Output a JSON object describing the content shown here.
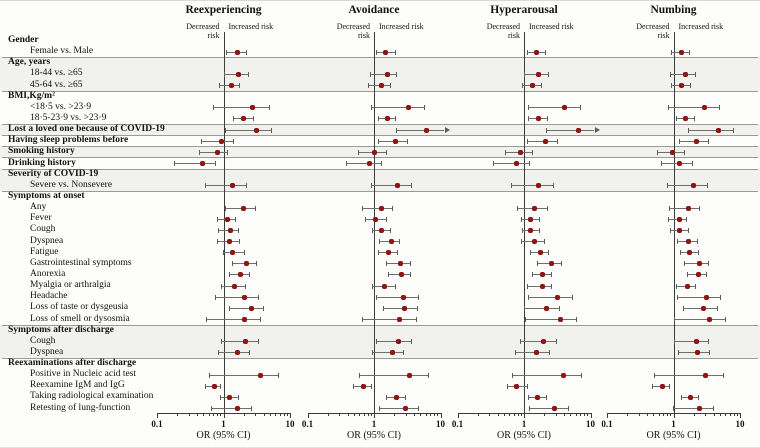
{
  "chart_data": {
    "type": "forest",
    "title": "",
    "xlabel": "OR (95% CI)",
    "xlim": [
      0.1,
      10
    ],
    "x_major_ticks": [
      "0.1",
      "1",
      "10"
    ],
    "grid": false,
    "risk_left_label": "Decreased risk",
    "risk_right_label": "Increased risk",
    "colors": {
      "marker": "#8e1510",
      "ci": "#6e6e6e",
      "band": "#f1f1ed",
      "divider": "#9a9a96"
    },
    "rows": [
      {
        "label": "Gender",
        "header": true
      },
      {
        "label": "Female vs. Male"
      },
      {
        "label": "Age, years",
        "header": true,
        "divider": true,
        "shaded": true
      },
      {
        "label": "18-44 vs. ≥65",
        "shaded": true
      },
      {
        "label": "45-64 vs. ≥65",
        "shaded": true
      },
      {
        "label": "BMI,Kg/m²",
        "header": true,
        "divider": true
      },
      {
        "label": "<18·5  vs. >23·9"
      },
      {
        "label": "18·5-23·9  vs. >23·9"
      },
      {
        "label": "Lost a loved one because of COVID-19",
        "header": true,
        "divider": true,
        "shaded": true
      },
      {
        "label": "Having sleep problems before",
        "header": true,
        "divider": true
      },
      {
        "label": "Smoking history",
        "header": true,
        "divider": true,
        "shaded": true
      },
      {
        "label": "Drinking history",
        "header": true,
        "divider": true
      },
      {
        "label": "Severity of COVID-19",
        "header": true,
        "divider": true,
        "shaded": true
      },
      {
        "label": "Severe vs. Nonsevere",
        "shaded": true
      },
      {
        "label": "Symptoms at onset",
        "header": true,
        "divider": true
      },
      {
        "label": "Any"
      },
      {
        "label": "Fever"
      },
      {
        "label": "Cough"
      },
      {
        "label": "Dyspnea"
      },
      {
        "label": "Fatigue"
      },
      {
        "label": "Gastrointestinal symptoms"
      },
      {
        "label": "Anorexia"
      },
      {
        "label": "Myalgia or arthralgia"
      },
      {
        "label": "Headache"
      },
      {
        "label": "Loss of taste or dysgeusia"
      },
      {
        "label": "Loss of smell or dysosmia"
      },
      {
        "label": "Symptoms after discharge",
        "header": true,
        "divider": true,
        "shaded": true
      },
      {
        "label": "Cough",
        "shaded": true
      },
      {
        "label": "Dyspnea",
        "shaded": true
      },
      {
        "label": "Reexaminations after discharge",
        "header": true,
        "divider": true
      },
      {
        "label": "Positive in Nucleic acid test"
      },
      {
        "label": "Reexamine IgM and IgG"
      },
      {
        "label": "Taking radiological examination"
      },
      {
        "label": "Retesting of lung-function"
      }
    ],
    "panels": [
      {
        "title": "Reexperiencing",
        "values": {
          "1": [
            1.6,
            1.1,
            2.2
          ],
          "3": [
            1.7,
            1.0,
            2.3
          ],
          "4": [
            1.3,
            0.85,
            1.7
          ],
          "6": [
            2.7,
            0.7,
            4.8
          ],
          "7": [
            2.0,
            1.4,
            2.75
          ],
          "8": [
            3.1,
            1.05,
            5.2
          ],
          "9": [
            0.93,
            0.46,
            1.4
          ],
          "10": [
            0.81,
            0.43,
            1.12
          ],
          "11": [
            0.48,
            0.18,
            0.75
          ],
          "13": [
            1.35,
            0.52,
            2.2
          ],
          "15": [
            2.0,
            1.05,
            3.0
          ],
          "16": [
            1.14,
            0.81,
            1.5
          ],
          "17": [
            1.26,
            0.84,
            1.63
          ],
          "18": [
            1.23,
            0.8,
            1.7
          ],
          "19": [
            1.37,
            0.97,
            2.0
          ],
          "20": [
            2.2,
            1.35,
            3.05
          ],
          "21": [
            1.8,
            1.23,
            2.4
          ],
          "22": [
            1.47,
            0.92,
            2.1
          ],
          "23": [
            2.05,
            0.74,
            3.3
          ],
          "24": [
            2.6,
            1.23,
            3.9
          ],
          "25": [
            2.1,
            0.55,
            3.6
          ],
          "27": [
            2.15,
            0.93,
            3.3
          ],
          "28": [
            1.65,
            0.82,
            2.4
          ],
          "30": [
            3.6,
            0.61,
            6.6
          ],
          "31": [
            0.74,
            0.52,
            0.89
          ],
          "32": [
            1.25,
            0.9,
            1.65
          ],
          "33": [
            1.65,
            0.65,
            2.55
          ]
        }
      },
      {
        "title": "Avoidance",
        "values": {
          "1": [
            1.5,
            1.07,
            2.07
          ],
          "3": [
            1.58,
            0.87,
            2.17
          ],
          "4": [
            1.29,
            0.81,
            1.72
          ],
          "6": [
            3.3,
            0.89,
            5.7
          ],
          "7": [
            1.58,
            1.13,
            2.1
          ],
          "8": [
            6.2,
            2.16,
            11.5,
            "arrow"
          ],
          "9": [
            2.1,
            1.13,
            3.18
          ],
          "10": [
            1.02,
            0.58,
            1.5
          ],
          "11": [
            0.86,
            0.38,
            1.26
          ],
          "13": [
            2.24,
            0.89,
            3.65
          ],
          "15": [
            1.3,
            0.65,
            1.87
          ],
          "16": [
            1.06,
            0.73,
            1.5
          ],
          "17": [
            1.3,
            0.94,
            1.72
          ],
          "18": [
            1.84,
            1.18,
            2.4
          ],
          "19": [
            1.68,
            1.16,
            2.19
          ],
          "20": [
            2.5,
            1.5,
            3.44
          ],
          "21": [
            2.58,
            1.65,
            3.52
          ],
          "22": [
            1.45,
            0.92,
            2.1
          ],
          "23": [
            2.77,
            1.06,
            4.6
          ],
          "24": [
            2.9,
            1.36,
            4.43
          ],
          "25": [
            2.43,
            0.67,
            4.34
          ],
          "27": [
            2.33,
            1.08,
            3.56
          ],
          "28": [
            1.89,
            0.92,
            2.73
          ],
          "30": [
            3.44,
            0.6,
            6.5
          ],
          "31": [
            0.7,
            0.48,
            0.89
          ],
          "32": [
            2.17,
            1.5,
            2.95
          ],
          "33": [
            2.93,
            1.18,
            4.6
          ]
        }
      },
      {
        "title": "Hyperarousal",
        "values": {
          "1": [
            1.55,
            1.1,
            2.07
          ],
          "3": [
            1.64,
            1.0,
            2.32
          ],
          "4": [
            1.35,
            0.92,
            1.78
          ],
          "6": [
            4.0,
            1.16,
            6.94
          ],
          "7": [
            1.64,
            1.14,
            2.2
          ],
          "8": [
            6.5,
            2.12,
            11.5,
            "arrow"
          ],
          "9": [
            2.07,
            1.1,
            3.17
          ],
          "10": [
            0.89,
            0.51,
            1.33
          ],
          "11": [
            0.78,
            0.34,
            1.2
          ],
          "13": [
            1.64,
            0.64,
            2.76
          ],
          "15": [
            1.43,
            0.78,
            2.2
          ],
          "16": [
            1.27,
            0.89,
            1.68
          ],
          "17": [
            1.27,
            0.92,
            1.7
          ],
          "18": [
            1.43,
            0.9,
            1.98
          ],
          "19": [
            1.78,
            1.23,
            2.32
          ],
          "20": [
            2.61,
            1.59,
            3.57
          ],
          "21": [
            1.89,
            1.3,
            2.52
          ],
          "22": [
            1.89,
            1.12,
            2.52
          ],
          "23": [
            3.17,
            1.14,
            5.2
          ],
          "24": [
            2.2,
            1.0,
            3.36
          ],
          "25": [
            3.6,
            1.03,
            6.05
          ],
          "27": [
            1.95,
            0.87,
            3.03
          ],
          "28": [
            1.55,
            0.74,
            2.38
          ],
          "30": [
            3.9,
            0.66,
            7.1
          ],
          "31": [
            0.78,
            0.55,
            1.1
          ],
          "32": [
            1.6,
            1.16,
            2.14
          ],
          "33": [
            2.86,
            1.19,
            4.64
          ]
        }
      },
      {
        "title": "Numbing",
        "values": {
          "1": [
            1.3,
            0.92,
            1.71
          ],
          "3": [
            1.53,
            0.89,
            2.1
          ],
          "4": [
            1.33,
            0.91,
            1.77
          ],
          "6": [
            2.9,
            0.82,
            4.83
          ],
          "7": [
            1.54,
            1.09,
            2.06
          ],
          "8": [
            4.7,
            1.64,
            7.9
          ],
          "9": [
            2.23,
            1.21,
            3.27
          ],
          "10": [
            0.97,
            0.57,
            1.45
          ],
          "11": [
            1.25,
            0.65,
            1.92
          ],
          "13": [
            2.0,
            0.79,
            3.16
          ],
          "15": [
            1.67,
            0.86,
            2.44
          ],
          "16": [
            1.21,
            0.82,
            1.54
          ],
          "17": [
            1.25,
            0.89,
            1.67
          ],
          "18": [
            1.71,
            1.12,
            2.28
          ],
          "19": [
            1.77,
            1.25,
            2.31
          ],
          "20": [
            2.5,
            1.45,
            3.34
          ],
          "21": [
            2.36,
            1.58,
            3.08
          ],
          "22": [
            1.61,
            1.08,
            2.1
          ],
          "23": [
            3.16,
            1.11,
            5.0
          ],
          "24": [
            2.8,
            1.39,
            4.55
          ],
          "25": [
            3.44,
            1.0,
            5.94
          ],
          "27": [
            2.25,
            1.01,
            3.34
          ],
          "28": [
            2.31,
            1.15,
            3.45
          ],
          "30": [
            3.08,
            0.51,
            5.6
          ],
          "31": [
            0.69,
            0.47,
            0.85
          ],
          "32": [
            1.83,
            1.3,
            2.36
          ],
          "33": [
            2.5,
            0.97,
            3.96
          ]
        }
      }
    ]
  }
}
